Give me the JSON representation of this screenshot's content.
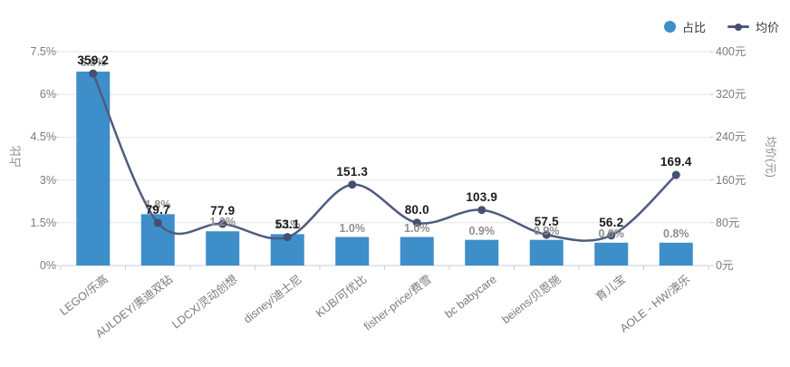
{
  "legend": {
    "bar_label": "占比",
    "line_label": "均价"
  },
  "colors": {
    "bar": "#3e8ec9",
    "line": "#4f5b80",
    "line_marker": "#44506e",
    "grid": "#e6e6e6",
    "x_axis": "#c3cde2",
    "y_tick": "#cccccc",
    "tick_text": "#7a7a7a",
    "bar_value_text": "#8f8f8f",
    "line_value_text": "#1c1c1c"
  },
  "chart_data": {
    "type": "bar",
    "subtype": "bar+line dual-axis combo",
    "title": "",
    "legend_position": "top-right",
    "grid": true,
    "categories": [
      "LEGO/乐高",
      "AULDEY/奥迪双钻",
      "LDCX/灵动创想",
      "disney/迪士尼",
      "KUB/可优比",
      "fisher-price/费雪",
      "bc babycare",
      "beiens/贝恩施",
      "育儿宝",
      "AOLE - HW/澳乐"
    ],
    "series": [
      {
        "name": "占比",
        "type": "bar",
        "y_axis": "left",
        "unit": "%",
        "values": [
          6.8,
          1.8,
          1.2,
          1.1,
          1.0,
          1.0,
          0.9,
          0.9,
          0.8,
          0.8
        ],
        "labels": [
          "6.8%",
          "1.8%",
          "1.2%",
          "1.1%",
          "1.0%",
          "1.0%",
          "0.9%",
          "0.9%",
          "0.8%",
          "0.8%"
        ]
      },
      {
        "name": "均价",
        "type": "line",
        "y_axis": "right",
        "unit": "元",
        "values": [
          359.2,
          79.7,
          77.9,
          53.1,
          151.3,
          80.0,
          103.9,
          57.5,
          56.2,
          169.4
        ],
        "labels": [
          "359.2",
          "79.7",
          "77.9",
          "53.1",
          "151.3",
          "80.0",
          "103.9",
          "57.5",
          "56.2",
          "169.4"
        ]
      }
    ],
    "left_axis": {
      "title": "占比",
      "min": 0,
      "max": 7.5,
      "tick_labels": [
        "0%",
        "1.5%",
        "3%",
        "4.5%",
        "6%",
        "7.5%"
      ]
    },
    "right_axis": {
      "title": "均价(元)",
      "min": 0,
      "max": 400,
      "tick_labels": [
        "0元",
        "80元",
        "160元",
        "240元",
        "320元",
        "400元"
      ]
    }
  }
}
